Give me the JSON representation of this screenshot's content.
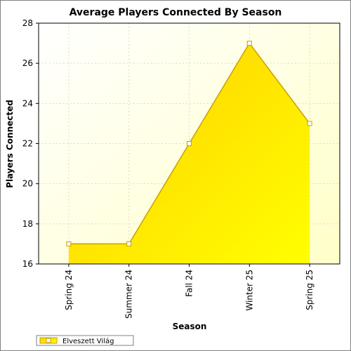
{
  "chart_data": {
    "type": "area",
    "title": "Average Players Connected By Season",
    "xlabel": "Season",
    "ylabel": "Players Connected",
    "categories": [
      "Spring 24",
      "Summer 24",
      "Fall 24",
      "Winter 25",
      "Spring 25"
    ],
    "series": [
      {
        "name": "Elveszett Világ",
        "values": [
          17,
          17,
          22,
          27,
          23
        ]
      }
    ],
    "ylim": [
      16,
      28
    ],
    "yticks": [
      16,
      18,
      20,
      22,
      24,
      26,
      28
    ],
    "grid": true,
    "legend_position": "bottom-left",
    "colors": {
      "fill_top": "#ffd700",
      "fill_bottom": "#ffff00",
      "line": "#c8a000",
      "marker_fill": "#ffffff",
      "plot_bg_top": "#ffffff",
      "plot_bg_bottom": "#ffffcc",
      "grid": "#dcdcc0"
    }
  }
}
